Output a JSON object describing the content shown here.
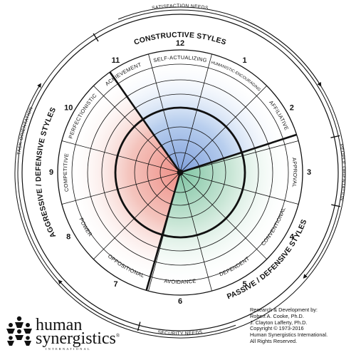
{
  "colors": {
    "constructive": "#b9cfee",
    "passive": "#c9e6d6",
    "aggressive": "#f4c4bd",
    "lines": "#111111"
  },
  "segments": [
    {
      "num": "1",
      "label": "HUMANISTIC-ENCOURAGING"
    },
    {
      "num": "2",
      "label": "AFFILIATIVE"
    },
    {
      "num": "3",
      "label": "APPROVAL"
    },
    {
      "num": "4",
      "label": "CONVENTIONAL"
    },
    {
      "num": "5",
      "label": "DEPENDENT"
    },
    {
      "num": "6",
      "label": "AVOIDANCE"
    },
    {
      "num": "7",
      "label": "OPPOSITIONAL"
    },
    {
      "num": "8",
      "label": "POWER"
    },
    {
      "num": "9",
      "label": "COMPETITIVE"
    },
    {
      "num": "10",
      "label": "PERFECTIONISTIC"
    },
    {
      "num": "11",
      "label": "ACHIEVEMENT"
    },
    {
      "num": "12",
      "label": "SELF-ACTUALIZING"
    }
  ],
  "style_clusters": {
    "constructive": "CONSTRUCTIVE STYLES",
    "passive_defensive": "PASSIVE / DEFENSIVE STYLES",
    "aggressive_defensive": "AGGRESSIVE / DEFENSIVE STYLES"
  },
  "orientations": {
    "satisfaction": "SATISFACTION NEEDS",
    "security": "SECURITY NEEDS",
    "task": "TASK ORIENTATION",
    "people": "PEOPLE ORIENTATION"
  },
  "credits": [
    "Research & Development by:",
    "Robert A. Cooke, Ph.D.",
    "J. Clayton Lafferty, Ph.D.",
    "Copyright © 1973-2016",
    "Human Synergistics International.",
    "All Rights Reserved."
  ],
  "logo": {
    "line1": "human",
    "line2": "synergistics",
    "line3": "INTERNATIONAL",
    "registered": "®"
  }
}
